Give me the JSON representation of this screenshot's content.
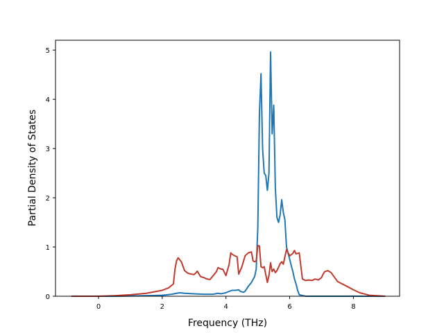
{
  "chart_data": {
    "type": "line",
    "title": "",
    "xlabel": "Frequency (THz)",
    "ylabel": "Partial Density of States",
    "xlim": [
      -1.35,
      9.45
    ],
    "ylim": [
      0,
      5.2
    ],
    "xticks": [
      0,
      2,
      4,
      6,
      8
    ],
    "yticks": [
      0,
      1,
      2,
      3,
      4,
      5
    ],
    "grid": false,
    "legend": "none",
    "series": [
      {
        "color": "#1f77b4",
        "x": [
          -0.85,
          0.5,
          1.0,
          1.5,
          2.0,
          2.3,
          2.45,
          2.55,
          2.7,
          3.0,
          3.3,
          3.6,
          3.75,
          3.85,
          4.0,
          4.1,
          4.2,
          4.3,
          4.4,
          4.45,
          4.55,
          4.6,
          4.7,
          4.8,
          4.9,
          4.95,
          5.0,
          5.05,
          5.1,
          5.15,
          5.2,
          5.25,
          5.3,
          5.35,
          5.4,
          5.45,
          5.5,
          5.55,
          5.6,
          5.65,
          5.7,
          5.75,
          5.8,
          5.85,
          5.9,
          6.0,
          6.05,
          6.1,
          6.15,
          6.2,
          6.25,
          6.3,
          6.5,
          9.0
        ],
        "y": [
          0,
          0,
          0.005,
          0.01,
          0.02,
          0.04,
          0.06,
          0.07,
          0.06,
          0.05,
          0.04,
          0.04,
          0.06,
          0.05,
          0.07,
          0.1,
          0.12,
          0.12,
          0.13,
          0.1,
          0.08,
          0.1,
          0.2,
          0.28,
          0.4,
          0.55,
          1.4,
          3.7,
          4.52,
          3.0,
          2.5,
          2.45,
          2.15,
          2.5,
          4.96,
          3.3,
          3.88,
          2.2,
          1.6,
          1.5,
          1.65,
          1.96,
          1.7,
          1.55,
          1.0,
          0.75,
          0.62,
          0.5,
          0.35,
          0.25,
          0.12,
          0.03,
          0,
          0
        ]
      },
      {
        "color": "#c0392b",
        "x": [
          -0.85,
          0.0,
          0.5,
          1.0,
          1.5,
          2.0,
          2.2,
          2.35,
          2.4,
          2.45,
          2.5,
          2.6,
          2.7,
          2.8,
          2.9,
          3.0,
          3.05,
          3.1,
          3.2,
          3.3,
          3.4,
          3.5,
          3.6,
          3.7,
          3.75,
          3.85,
          3.9,
          4.0,
          4.1,
          4.15,
          4.2,
          4.25,
          4.35,
          4.4,
          4.5,
          4.6,
          4.7,
          4.8,
          4.85,
          4.9,
          4.95,
          5.0,
          5.05,
          5.1,
          5.15,
          5.2,
          5.3,
          5.35,
          5.4,
          5.45,
          5.5,
          5.55,
          5.6,
          5.7,
          5.75,
          5.8,
          5.9,
          6.0,
          6.1,
          6.15,
          6.2,
          6.3,
          6.4,
          6.5,
          6.6,
          6.7,
          6.8,
          6.9,
          7.0,
          7.05,
          7.1,
          7.2,
          7.3,
          7.5,
          7.8,
          8.0,
          8.2,
          8.5,
          9.0
        ],
        "y": [
          0,
          0,
          0.01,
          0.03,
          0.06,
          0.12,
          0.17,
          0.25,
          0.55,
          0.72,
          0.78,
          0.7,
          0.52,
          0.47,
          0.45,
          0.44,
          0.47,
          0.51,
          0.4,
          0.38,
          0.35,
          0.34,
          0.42,
          0.5,
          0.58,
          0.55,
          0.55,
          0.42,
          0.65,
          0.88,
          0.85,
          0.83,
          0.8,
          0.45,
          0.6,
          0.82,
          0.88,
          0.9,
          0.72,
          0.7,
          0.72,
          1.03,
          1.02,
          0.6,
          0.58,
          0.6,
          0.28,
          0.42,
          0.68,
          0.5,
          0.55,
          0.48,
          0.52,
          0.66,
          0.7,
          0.65,
          0.95,
          0.82,
          0.87,
          0.93,
          0.86,
          0.88,
          0.35,
          0.32,
          0.33,
          0.32,
          0.35,
          0.33,
          0.38,
          0.45,
          0.5,
          0.52,
          0.48,
          0.3,
          0.2,
          0.13,
          0.07,
          0.02,
          0
        ]
      }
    ]
  }
}
